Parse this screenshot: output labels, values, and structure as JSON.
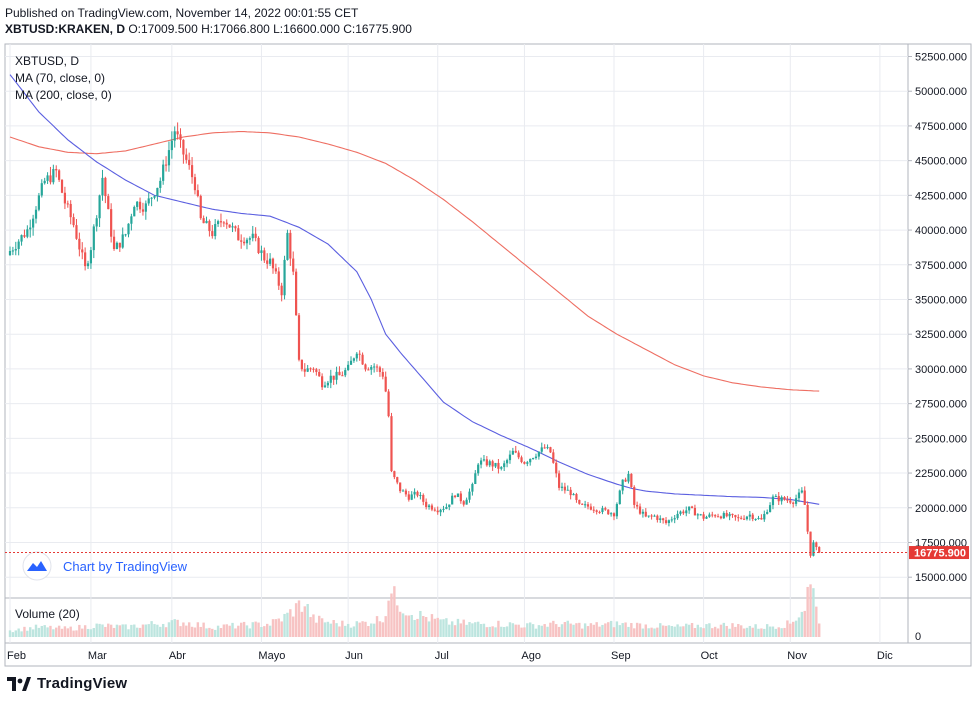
{
  "header": {
    "published": "Published on TradingView.com, November 14, 2022 00:01:55 CET",
    "symbol": "XBTUSD:KRAKEN, D",
    "ohlc": "O:17009.500 H:17066.800 L:16600.000 C:16775.900"
  },
  "chart_data": {
    "type": "candlestick",
    "symbol": "XBTUSD, D",
    "indicators": [
      "MA (70, close, 0)",
      "MA (200, close, 0)"
    ],
    "volume_label": "Volume (20)",
    "volume_zero_label": "0",
    "watermark": "Chart by TradingView",
    "last_price_label": "16775.900",
    "last_price": 16775.9,
    "ylim": [
      13000,
      53500
    ],
    "yticks": [
      "52500.000",
      "50000.000",
      "47500.000",
      "45000.000",
      "42500.000",
      "40000.000",
      "37500.000",
      "35000.000",
      "32500.000",
      "30000.000",
      "27500.000",
      "25000.000",
      "22500.000",
      "20000.000",
      "17500.000",
      "15000.000"
    ],
    "ytick_values": [
      52500,
      50000,
      47500,
      45000,
      42500,
      40000,
      37500,
      35000,
      32500,
      30000,
      27500,
      25000,
      22500,
      20000,
      17500,
      15000
    ],
    "month_labels": [
      "Feb",
      "Mar",
      "Abr",
      "Mayo",
      "Jun",
      "Jul",
      "Ago",
      "Sep",
      "Oct",
      "Nov",
      "Dic"
    ],
    "month_start_day_index": [
      0,
      28,
      56,
      87,
      117,
      148,
      178,
      209,
      240,
      270,
      301
    ],
    "close_anchors": [
      [
        0,
        38500
      ],
      [
        6,
        40000
      ],
      [
        12,
        43500
      ],
      [
        16,
        44200
      ],
      [
        19,
        42000
      ],
      [
        22,
        40400
      ],
      [
        26,
        37200
      ],
      [
        28,
        38800
      ],
      [
        32,
        43800
      ],
      [
        36,
        38500
      ],
      [
        40,
        39700
      ],
      [
        43,
        42000
      ],
      [
        47,
        41700
      ],
      [
        52,
        43600
      ],
      [
        57,
        47200
      ],
      [
        59,
        46000
      ],
      [
        61,
        45000
      ],
      [
        64,
        43300
      ],
      [
        66,
        40700
      ],
      [
        70,
        39800
      ],
      [
        74,
        40900
      ],
      [
        79,
        39500
      ],
      [
        84,
        39400
      ],
      [
        88,
        38000
      ],
      [
        90,
        37700
      ],
      [
        94,
        35600
      ],
      [
        96,
        39700
      ],
      [
        98,
        36800
      ],
      [
        100,
        30400
      ],
      [
        102,
        29900
      ],
      [
        105,
        30100
      ],
      [
        108,
        29000
      ],
      [
        111,
        29400
      ],
      [
        114,
        29500
      ],
      [
        117,
        30000
      ],
      [
        120,
        31400
      ],
      [
        123,
        30200
      ],
      [
        126,
        30200
      ],
      [
        129,
        29600
      ],
      [
        130,
        28400
      ],
      [
        131,
        26600
      ],
      [
        132,
        22500
      ],
      [
        135,
        21300
      ],
      [
        138,
        20800
      ],
      [
        141,
        21000
      ],
      [
        144,
        20200
      ],
      [
        148,
        19900
      ],
      [
        151,
        20100
      ],
      [
        154,
        21000
      ],
      [
        157,
        20400
      ],
      [
        160,
        21500
      ],
      [
        162,
        23300
      ],
      [
        166,
        23200
      ],
      [
        170,
        22800
      ],
      [
        174,
        24000
      ],
      [
        178,
        23300
      ],
      [
        182,
        23900
      ],
      [
        185,
        24300
      ],
      [
        187,
        24000
      ],
      [
        190,
        21500
      ],
      [
        194,
        21100
      ],
      [
        197,
        20100
      ],
      [
        200,
        20100
      ],
      [
        205,
        19800
      ],
      [
        209,
        19600
      ],
      [
        212,
        21800
      ],
      [
        214,
        22400
      ],
      [
        216,
        20200
      ],
      [
        220,
        19300
      ],
      [
        223,
        19400
      ],
      [
        227,
        18900
      ],
      [
        231,
        19600
      ],
      [
        235,
        19900
      ],
      [
        240,
        19300
      ],
      [
        244,
        19500
      ],
      [
        248,
        19400
      ],
      [
        252,
        19200
      ],
      [
        256,
        19500
      ],
      [
        260,
        19100
      ],
      [
        264,
        20700
      ],
      [
        268,
        20600
      ],
      [
        271,
        20500
      ],
      [
        274,
        21100
      ],
      [
        275,
        20200
      ],
      [
        276,
        18300
      ],
      [
        277,
        16700
      ],
      [
        278,
        17400
      ],
      [
        279,
        17000
      ],
      [
        280,
        16775.9
      ]
    ],
    "ma70_anchors": [
      [
        0,
        51200
      ],
      [
        10,
        48500
      ],
      [
        20,
        46500
      ],
      [
        30,
        44900
      ],
      [
        40,
        43600
      ],
      [
        50,
        42500
      ],
      [
        60,
        42000
      ],
      [
        70,
        41500
      ],
      [
        80,
        41200
      ],
      [
        90,
        41000
      ],
      [
        95,
        40600
      ],
      [
        100,
        40200
      ],
      [
        110,
        39000
      ],
      [
        120,
        37000
      ],
      [
        125,
        35000
      ],
      [
        130,
        32500
      ],
      [
        135,
        31200
      ],
      [
        140,
        30000
      ],
      [
        150,
        27600
      ],
      [
        160,
        26200
      ],
      [
        170,
        25200
      ],
      [
        180,
        24300
      ],
      [
        190,
        23300
      ],
      [
        200,
        22400
      ],
      [
        210,
        21700
      ],
      [
        215,
        21400
      ],
      [
        220,
        21200
      ],
      [
        230,
        21000
      ],
      [
        240,
        20900
      ],
      [
        250,
        20800
      ],
      [
        260,
        20750
      ],
      [
        270,
        20600
      ],
      [
        280,
        20250
      ]
    ],
    "ma200_anchors": [
      [
        0,
        46700
      ],
      [
        10,
        46000
      ],
      [
        20,
        45600
      ],
      [
        30,
        45500
      ],
      [
        40,
        45700
      ],
      [
        50,
        46200
      ],
      [
        60,
        46700
      ],
      [
        70,
        47000
      ],
      [
        80,
        47100
      ],
      [
        90,
        47000
      ],
      [
        100,
        46700
      ],
      [
        110,
        46200
      ],
      [
        120,
        45600
      ],
      [
        130,
        44800
      ],
      [
        140,
        43600
      ],
      [
        150,
        42200
      ],
      [
        160,
        40600
      ],
      [
        170,
        38900
      ],
      [
        180,
        37200
      ],
      [
        190,
        35500
      ],
      [
        200,
        33800
      ],
      [
        210,
        32500
      ],
      [
        220,
        31400
      ],
      [
        230,
        30300
      ],
      [
        240,
        29500
      ],
      [
        250,
        29000
      ],
      [
        260,
        28700
      ],
      [
        270,
        28500
      ],
      [
        280,
        28400
      ]
    ],
    "volume_anchors": [
      [
        0,
        20
      ],
      [
        10,
        30
      ],
      [
        20,
        25
      ],
      [
        30,
        35
      ],
      [
        40,
        30
      ],
      [
        50,
        40
      ],
      [
        60,
        45
      ],
      [
        70,
        30
      ],
      [
        80,
        35
      ],
      [
        90,
        40
      ],
      [
        95,
        60
      ],
      [
        100,
        95
      ],
      [
        102,
        100
      ],
      [
        105,
        55
      ],
      [
        110,
        45
      ],
      [
        115,
        40
      ],
      [
        120,
        40
      ],
      [
        124,
        45
      ],
      [
        128,
        55
      ],
      [
        130,
        70
      ],
      [
        131,
        140
      ],
      [
        133,
        120
      ],
      [
        136,
        90
      ],
      [
        140,
        70
      ],
      [
        150,
        45
      ],
      [
        160,
        40
      ],
      [
        170,
        40
      ],
      [
        180,
        35
      ],
      [
        190,
        40
      ],
      [
        200,
        35
      ],
      [
        210,
        40
      ],
      [
        220,
        35
      ],
      [
        230,
        30
      ],
      [
        240,
        35
      ],
      [
        250,
        35
      ],
      [
        260,
        30
      ],
      [
        270,
        40
      ],
      [
        275,
        90
      ],
      [
        276,
        140
      ],
      [
        277,
        150
      ],
      [
        279,
        120
      ],
      [
        280,
        45
      ]
    ],
    "colors": {
      "up": "#26a69a",
      "down": "#ef5350",
      "ma70": "#5b5fe0",
      "ma200": "#ee6e62",
      "vol_up": "#bde5df",
      "vol_down": "#f7c3c3",
      "last_price": "#e53935",
      "brand_blue": "#2962ff"
    }
  },
  "footer": {
    "brand": "TradingView"
  }
}
